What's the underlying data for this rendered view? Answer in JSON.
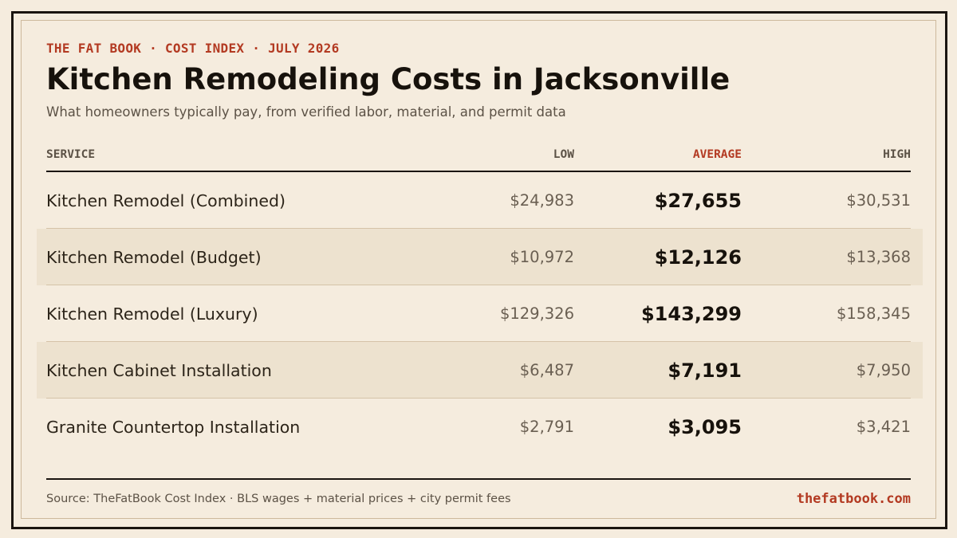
{
  "header": {
    "kicker": "THE FAT BOOK · COST INDEX · JULY 2026",
    "title": "Kitchen Remodeling Costs in Jacksonville",
    "subtitle": "What homeowners typically pay, from verified labor, material, and permit data"
  },
  "table": {
    "columns": {
      "service": "SERVICE",
      "low": "LOW",
      "average": "AVERAGE",
      "high": "HIGH"
    },
    "rows": [
      {
        "service": "Kitchen Remodel (Combined)",
        "low": "$24,983",
        "average": "$27,655",
        "high": "$30,531"
      },
      {
        "service": "Kitchen Remodel (Budget)",
        "low": "$10,972",
        "average": "$12,126",
        "high": "$13,368"
      },
      {
        "service": "Kitchen Remodel (Luxury)",
        "low": "$129,326",
        "average": "$143,299",
        "high": "$158,345"
      },
      {
        "service": "Kitchen Cabinet Installation",
        "low": "$6,487",
        "average": "$7,191",
        "high": "$7,950"
      },
      {
        "service": "Granite Countertop Installation",
        "low": "$2,791",
        "average": "$3,095",
        "high": "$3,421"
      }
    ]
  },
  "footer": {
    "source": "Source: TheFatBook Cost Index · BLS wages + material prices + city permit fees",
    "site": "thefatbook.com"
  },
  "colors": {
    "background": "#f5ecde",
    "accent": "#b33a22",
    "ink": "#17120c",
    "row_shade": "#ede2cf"
  }
}
